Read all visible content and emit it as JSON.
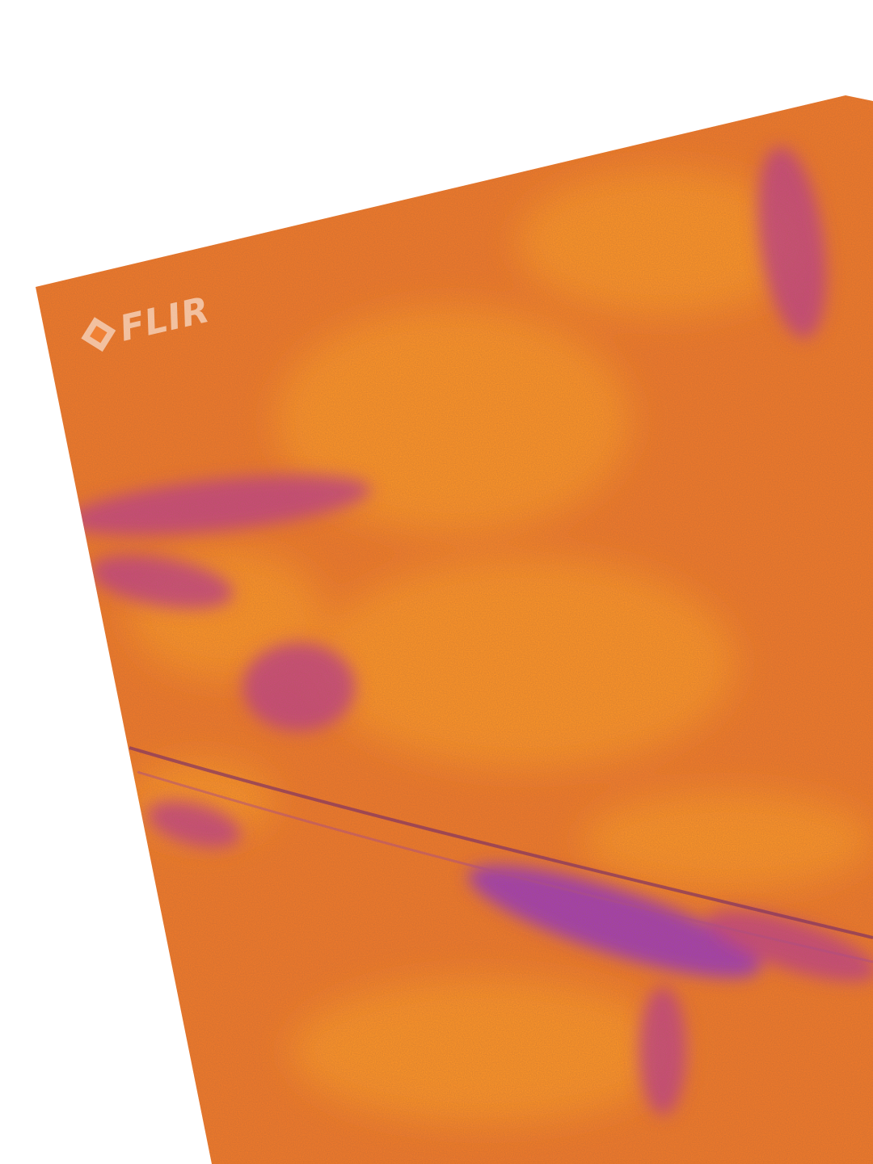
{
  "image": {
    "subject": "thermal-camera-photo-of-textured-wall",
    "palette": {
      "background": "#ffffff",
      "base": "#f07a2a",
      "warm_highlight": "#ff9a24",
      "cool_band": "#c2428a",
      "coldest": "#9a36c4"
    }
  },
  "watermark": {
    "brand": "FLIR",
    "icon": "flir-diamond-logo-icon"
  }
}
